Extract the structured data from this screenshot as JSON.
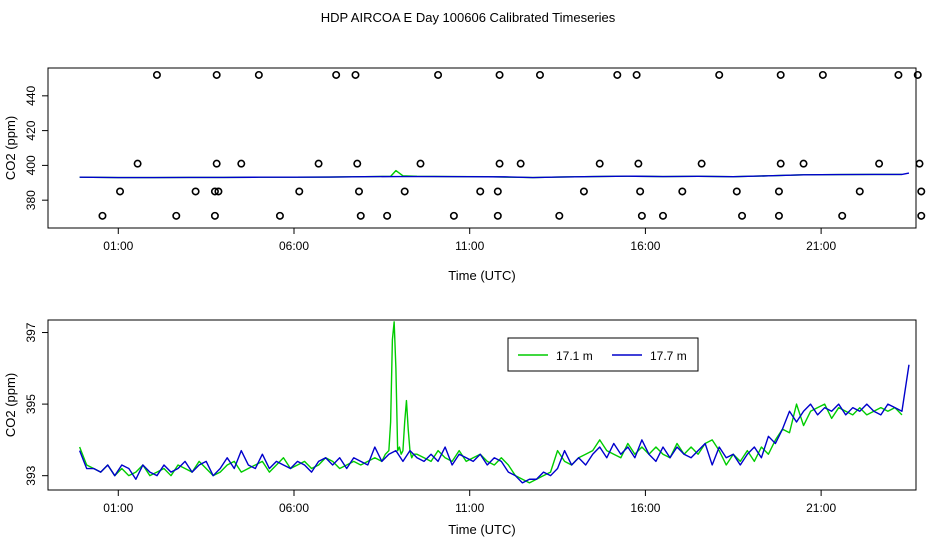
{
  "figure": {
    "title": "HDP AIRCOA E  Day 100606  Calibrated Timeseries"
  },
  "chart_data": [
    {
      "type": "scatter",
      "name": "panel-top",
      "xlabel": "Time (UTC)",
      "ylabel": "CO2 (ppm)",
      "xlim": [
        -1,
        23.7
      ],
      "ylim": [
        364,
        456
      ],
      "x_ticks": [
        1,
        6,
        11,
        16,
        21
      ],
      "x_tick_labels": [
        "01:00",
        "06:00",
        "11:00",
        "16:00",
        "21:00"
      ],
      "y_ticks": [
        380,
        400,
        420,
        440
      ],
      "y_tick_labels": [
        "380",
        "400",
        "420",
        "440"
      ],
      "markers": [
        {
          "level": 452,
          "x": [
            2.1,
            3.8,
            5.0,
            7.2,
            7.75,
            10.1,
            11.85,
            13.0,
            15.2,
            15.75,
            18.1,
            19.85,
            21.05,
            23.2,
            23.75
          ]
        },
        {
          "level": 401,
          "x": [
            1.55,
            3.8,
            4.5,
            6.7,
            7.8,
            9.6,
            11.85,
            12.45,
            14.7,
            15.8,
            17.6,
            19.85,
            20.5,
            22.65,
            23.8
          ]
        },
        {
          "level": 385,
          "x": [
            1.05,
            3.2,
            3.75,
            3.85,
            6.15,
            7.85,
            9.15,
            11.3,
            11.8,
            14.25,
            15.85,
            17.05,
            18.6,
            19.8,
            22.1,
            23.85
          ]
        },
        {
          "level": 371,
          "x": [
            0.55,
            2.65,
            3.75,
            5.6,
            7.9,
            8.65,
            10.55,
            11.8,
            13.55,
            15.9,
            16.5,
            18.75,
            19.8,
            21.6,
            23.85
          ]
        }
      ],
      "series": [
        {
          "name": "17.1 m",
          "color": "#00cc00",
          "x": [
            -0.1,
            1,
            2,
            3,
            4,
            5,
            6,
            7,
            8,
            8.75,
            8.9,
            9.1,
            9.5,
            10.5,
            11.5,
            12.2,
            12.8,
            13.5,
            14.5,
            15.5,
            16.5,
            17.5,
            18.5,
            19.5,
            20.5,
            21.5,
            22.5,
            23.3
          ],
          "y": [
            393.2,
            393.0,
            393.0,
            393.1,
            393.1,
            393.2,
            393.2,
            393.3,
            393.5,
            393.7,
            397,
            394.0,
            393.7,
            393.6,
            393.5,
            393.2,
            393.0,
            393.3,
            393.6,
            393.8,
            393.6,
            393.7,
            393.5,
            394.0,
            394.6,
            394.7,
            394.8,
            394.8
          ]
        },
        {
          "name": "17.7 m",
          "color": "#0000cc",
          "x": [
            -0.1,
            1,
            2,
            3,
            4,
            5,
            6,
            7,
            8,
            9,
            10,
            11,
            12,
            12.8,
            13.5,
            14.5,
            15.5,
            16.5,
            17.5,
            18.5,
            19.5,
            20.5,
            21.5,
            22.5,
            23.3,
            23.5
          ],
          "y": [
            393.2,
            393.0,
            393.0,
            393.1,
            393.1,
            393.2,
            393.2,
            393.3,
            393.5,
            393.6,
            393.6,
            393.5,
            393.4,
            393.0,
            393.3,
            393.6,
            393.8,
            393.6,
            393.7,
            393.5,
            394.0,
            394.6,
            394.7,
            394.8,
            394.8,
            395.6
          ]
        }
      ]
    },
    {
      "type": "line",
      "name": "panel-bottom",
      "xlabel": "Time (UTC)",
      "ylabel": "CO2 (ppm)",
      "xlim": [
        -1,
        23.7
      ],
      "ylim": [
        392.6,
        397.35
      ],
      "x_ticks": [
        1,
        6,
        11,
        16,
        21
      ],
      "x_tick_labels": [
        "01:00",
        "06:00",
        "11:00",
        "16:00",
        "21:00"
      ],
      "y_ticks": [
        393,
        395,
        397
      ],
      "y_tick_labels": [
        "393",
        "395",
        "397"
      ],
      "legend": {
        "position": "top-center-right",
        "entries": [
          "17.1 m",
          "17.7 m"
        ]
      },
      "series": [
        {
          "name": "17.1 m",
          "color": "#00cc00",
          "x": [
            -0.1,
            0.1,
            0.3,
            0.5,
            0.7,
            0.9,
            1.1,
            1.3,
            1.5,
            1.7,
            1.9,
            2.1,
            2.3,
            2.5,
            2.7,
            2.9,
            3.1,
            3.3,
            3.5,
            3.7,
            3.9,
            4.1,
            4.3,
            4.5,
            4.7,
            4.9,
            5.1,
            5.3,
            5.5,
            5.7,
            5.9,
            6.1,
            6.3,
            6.5,
            6.7,
            6.9,
            7.1,
            7.3,
            7.5,
            7.7,
            7.9,
            8.1,
            8.3,
            8.5,
            8.6,
            8.7,
            8.75,
            8.8,
            8.85,
            8.9,
            8.95,
            9.0,
            9.05,
            9.1,
            9.15,
            9.2,
            9.25,
            9.3,
            9.35,
            9.4,
            9.5,
            9.7,
            9.9,
            10.1,
            10.3,
            10.5,
            10.7,
            10.9,
            11.1,
            11.3,
            11.5,
            11.7,
            11.9,
            12.1,
            12.3,
            12.5,
            12.7,
            12.9,
            13.1,
            13.3,
            13.5,
            13.7,
            13.9,
            14.1,
            14.3,
            14.5,
            14.7,
            14.9,
            15.1,
            15.3,
            15.5,
            15.7,
            15.9,
            16.1,
            16.3,
            16.5,
            16.7,
            16.9,
            17.1,
            17.3,
            17.5,
            17.7,
            17.9,
            18.1,
            18.3,
            18.5,
            18.7,
            18.9,
            19.1,
            19.3,
            19.5,
            19.7,
            19.9,
            20.1,
            20.3,
            20.5,
            20.7,
            20.9,
            21.1,
            21.3,
            21.5,
            21.7,
            21.9,
            22.1,
            22.3,
            22.5,
            22.7,
            22.9,
            23.1,
            23.3
          ],
          "y": [
            393.8,
            393.3,
            393.2,
            393.1,
            393.3,
            393.0,
            393.2,
            393.0,
            393.1,
            393.3,
            393.0,
            393.1,
            393.2,
            393.0,
            393.3,
            393.2,
            393.1,
            393.4,
            393.2,
            393.0,
            393.1,
            393.3,
            393.4,
            393.1,
            393.2,
            393.3,
            393.4,
            393.1,
            393.3,
            393.5,
            393.2,
            393.3,
            393.4,
            393.2,
            393.3,
            393.5,
            393.4,
            393.2,
            393.3,
            393.4,
            393.3,
            393.4,
            393.5,
            393.4,
            393.6,
            393.7,
            394.5,
            396.8,
            397.3,
            396.0,
            393.7,
            393.8,
            393.6,
            393.7,
            394.5,
            395.1,
            394.3,
            393.7,
            393.5,
            393.6,
            393.6,
            393.5,
            393.4,
            393.7,
            393.5,
            393.4,
            393.7,
            393.4,
            393.5,
            393.6,
            393.4,
            393.3,
            393.5,
            393.3,
            393.0,
            392.9,
            392.8,
            392.9,
            393.0,
            393.1,
            393.7,
            393.4,
            393.3,
            393.5,
            393.6,
            393.7,
            394.0,
            393.7,
            393.6,
            393.5,
            393.9,
            393.6,
            393.8,
            393.6,
            393.8,
            393.6,
            393.5,
            393.9,
            393.6,
            393.8,
            393.6,
            393.9,
            394.0,
            393.7,
            393.3,
            393.6,
            393.4,
            393.7,
            393.4,
            393.8,
            393.6,
            394.0,
            394.3,
            394.2,
            395.0,
            394.4,
            394.8,
            394.9,
            395.0,
            394.6,
            394.9,
            394.8,
            394.7,
            394.9,
            394.7,
            394.8,
            394.9,
            394.8,
            394.9,
            394.7
          ]
        },
        {
          "name": "17.7 m",
          "color": "#0000cc",
          "x": [
            -0.1,
            0.1,
            0.3,
            0.5,
            0.7,
            0.9,
            1.1,
            1.3,
            1.5,
            1.7,
            1.9,
            2.1,
            2.3,
            2.5,
            2.7,
            2.9,
            3.1,
            3.3,
            3.5,
            3.7,
            3.9,
            4.1,
            4.3,
            4.5,
            4.7,
            4.9,
            5.1,
            5.3,
            5.5,
            5.7,
            5.9,
            6.1,
            6.3,
            6.5,
            6.7,
            6.9,
            7.1,
            7.3,
            7.5,
            7.7,
            7.9,
            8.1,
            8.3,
            8.5,
            8.7,
            8.9,
            9.1,
            9.3,
            9.5,
            9.7,
            9.9,
            10.1,
            10.3,
            10.5,
            10.7,
            10.9,
            11.1,
            11.3,
            11.5,
            11.7,
            11.9,
            12.1,
            12.3,
            12.5,
            12.7,
            12.9,
            13.1,
            13.3,
            13.5,
            13.7,
            13.9,
            14.1,
            14.3,
            14.5,
            14.7,
            14.9,
            15.1,
            15.3,
            15.5,
            15.7,
            15.9,
            16.1,
            16.3,
            16.5,
            16.7,
            16.9,
            17.1,
            17.3,
            17.5,
            17.7,
            17.9,
            18.1,
            18.3,
            18.5,
            18.7,
            18.9,
            19.1,
            19.3,
            19.5,
            19.7,
            19.9,
            20.1,
            20.3,
            20.5,
            20.7,
            20.9,
            21.1,
            21.3,
            21.5,
            21.7,
            21.9,
            22.1,
            22.3,
            22.5,
            22.7,
            22.9,
            23.1,
            23.3,
            23.5
          ],
          "y": [
            393.7,
            393.2,
            393.2,
            393.1,
            393.3,
            393.0,
            393.3,
            393.2,
            392.9,
            393.3,
            393.1,
            393.0,
            393.3,
            393.1,
            393.2,
            393.4,
            393.1,
            393.3,
            393.4,
            393.0,
            393.2,
            393.5,
            393.2,
            393.7,
            393.3,
            393.2,
            393.6,
            393.2,
            393.4,
            393.3,
            393.2,
            393.4,
            393.3,
            393.1,
            393.4,
            393.5,
            393.3,
            393.5,
            393.2,
            393.5,
            393.4,
            393.3,
            393.8,
            393.4,
            393.6,
            393.7,
            393.4,
            393.7,
            393.5,
            393.4,
            393.6,
            393.4,
            393.8,
            393.3,
            393.6,
            393.5,
            393.4,
            393.6,
            393.3,
            393.5,
            393.4,
            393.1,
            393.0,
            392.8,
            392.9,
            392.9,
            393.1,
            393.0,
            393.2,
            393.7,
            393.3,
            393.5,
            393.3,
            393.6,
            393.8,
            393.5,
            393.9,
            393.6,
            393.8,
            393.5,
            394.0,
            393.6,
            393.4,
            393.8,
            393.5,
            393.8,
            393.6,
            393.5,
            393.7,
            393.9,
            393.3,
            393.8,
            393.5,
            393.6,
            393.3,
            393.6,
            393.8,
            393.5,
            394.1,
            393.9,
            394.3,
            394.8,
            394.5,
            394.8,
            395.0,
            394.7,
            394.9,
            394.8,
            395.0,
            394.7,
            394.9,
            394.8,
            395.0,
            394.8,
            394.7,
            395.0,
            394.9,
            394.8,
            396.1
          ]
        }
      ]
    }
  ]
}
